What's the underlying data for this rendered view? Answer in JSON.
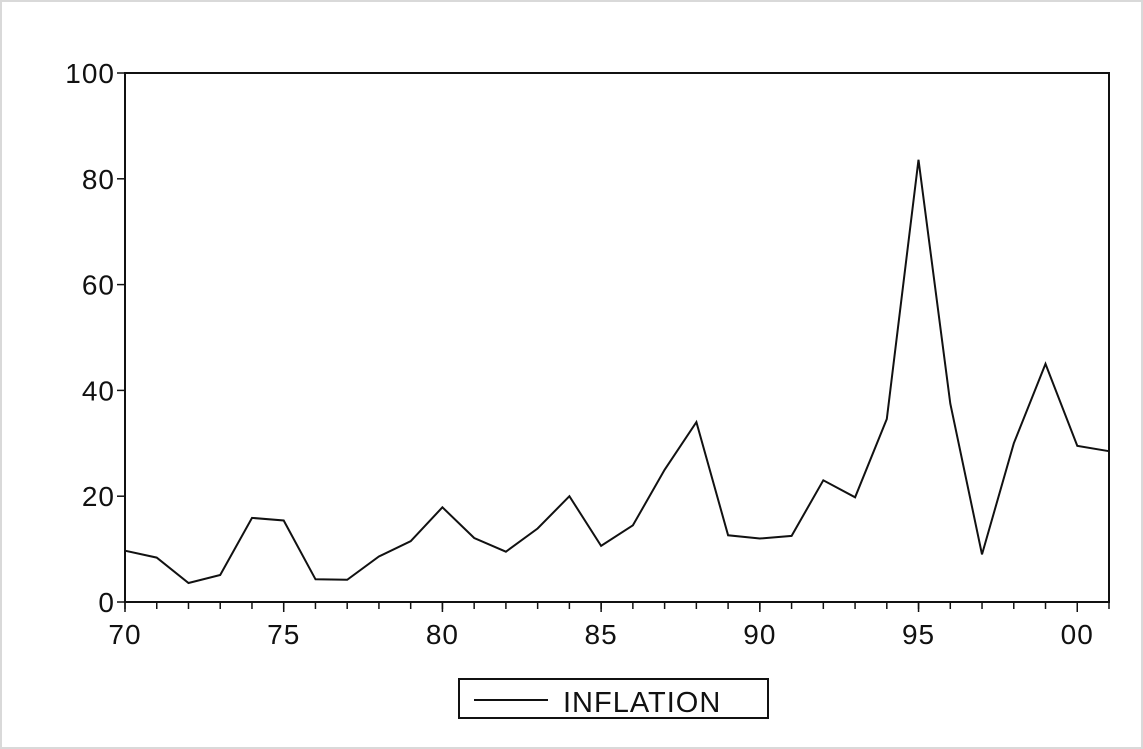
{
  "chart_data": {
    "type": "line",
    "title": "",
    "xlabel": "",
    "ylabel": "",
    "x": [
      1970,
      1971,
      1972,
      1973,
      1974,
      1975,
      1976,
      1977,
      1978,
      1979,
      1980,
      1981,
      1982,
      1983,
      1984,
      1985,
      1986,
      1987,
      1988,
      1989,
      1990,
      1991,
      1992,
      1993,
      1994,
      1995,
      1996,
      1997,
      1998,
      1999,
      2000,
      2001
    ],
    "xlim": [
      1970,
      2001
    ],
    "ylim": [
      0,
      100
    ],
    "xticks": [
      {
        "value": 1970,
        "label": "70"
      },
      {
        "value": 1975,
        "label": "75"
      },
      {
        "value": 1980,
        "label": "80"
      },
      {
        "value": 1985,
        "label": "85"
      },
      {
        "value": 1990,
        "label": "90"
      },
      {
        "value": 1995,
        "label": "95"
      },
      {
        "value": 2000,
        "label": "00"
      }
    ],
    "yticks": [
      {
        "value": 0,
        "label": "0"
      },
      {
        "value": 20,
        "label": "20"
      },
      {
        "value": 40,
        "label": "40"
      },
      {
        "value": 60,
        "label": "60"
      },
      {
        "value": 80,
        "label": "80"
      },
      {
        "value": 100,
        "label": "100"
      }
    ],
    "series": [
      {
        "name": "INFLATION",
        "color": "#111111",
        "values": [
          9.7,
          8.4,
          3.6,
          5.1,
          15.9,
          15.4,
          4.3,
          4.2,
          8.6,
          11.5,
          17.9,
          12.1,
          9.5,
          13.9,
          20.0,
          10.6,
          14.5,
          25.0,
          34.0,
          12.6,
          12.0,
          12.5,
          23.0,
          19.8,
          34.6,
          83.6,
          37.5,
          9.0,
          30.0,
          45.0,
          29.5,
          28.5
        ]
      }
    ],
    "grid": false,
    "legend": "bottom-center"
  }
}
